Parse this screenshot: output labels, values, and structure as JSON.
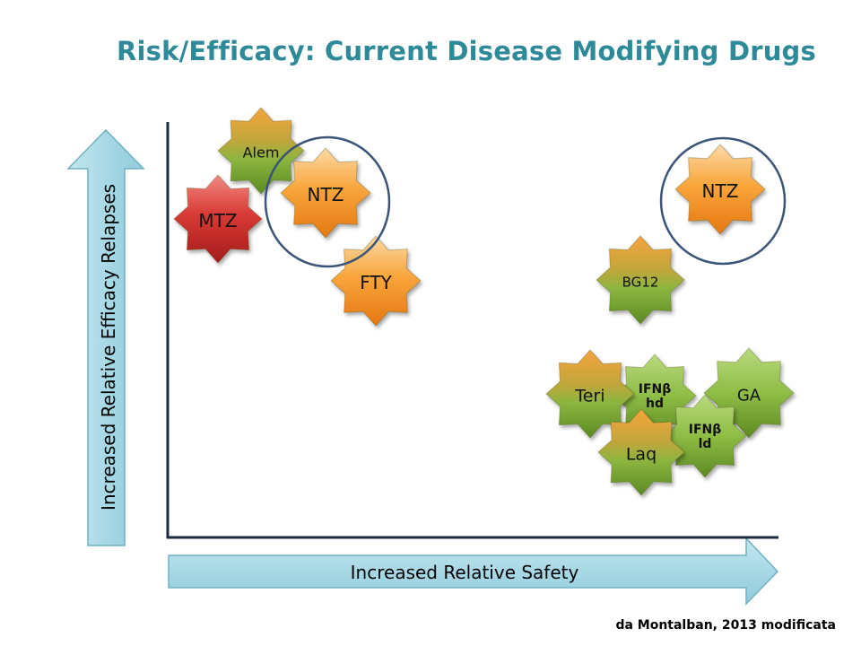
{
  "title": "Risk/Efficacy: Current Disease Modifying Drugs",
  "source": "da Montalban, 2013 modificata",
  "axes": {
    "x_label": "Increased Relative Safety",
    "y_label": "Increased Relative Efficacy Relapses"
  },
  "colors": {
    "orange": "#f28a1e",
    "green": "#8ab93c",
    "red": "#cc2a2a",
    "arrow_fill": "#9dd4e2",
    "circle_stroke": "#3b5578"
  },
  "drugs": [
    {
      "id": "alem",
      "label": "Alem",
      "color": "orange-green"
    },
    {
      "id": "mtz",
      "label": "MTZ",
      "color": "red"
    },
    {
      "id": "ntz-left",
      "label": "NTZ",
      "color": "orange"
    },
    {
      "id": "fty",
      "label": "FTY",
      "color": "orange"
    },
    {
      "id": "ntz-right",
      "label": "NTZ",
      "color": "orange"
    },
    {
      "id": "bg12",
      "label": "BG12",
      "color": "orange-green"
    },
    {
      "id": "ga",
      "label": "GA",
      "color": "green"
    },
    {
      "id": "ifnb-hd",
      "label": "IFNβ\nhd",
      "color": "green"
    },
    {
      "id": "teri",
      "label": "Teri",
      "color": "orange-green"
    },
    {
      "id": "ifnb-ld",
      "label": "IFNβ\nld",
      "color": "green"
    },
    {
      "id": "laq",
      "label": "Laq",
      "color": "orange-green"
    }
  ]
}
